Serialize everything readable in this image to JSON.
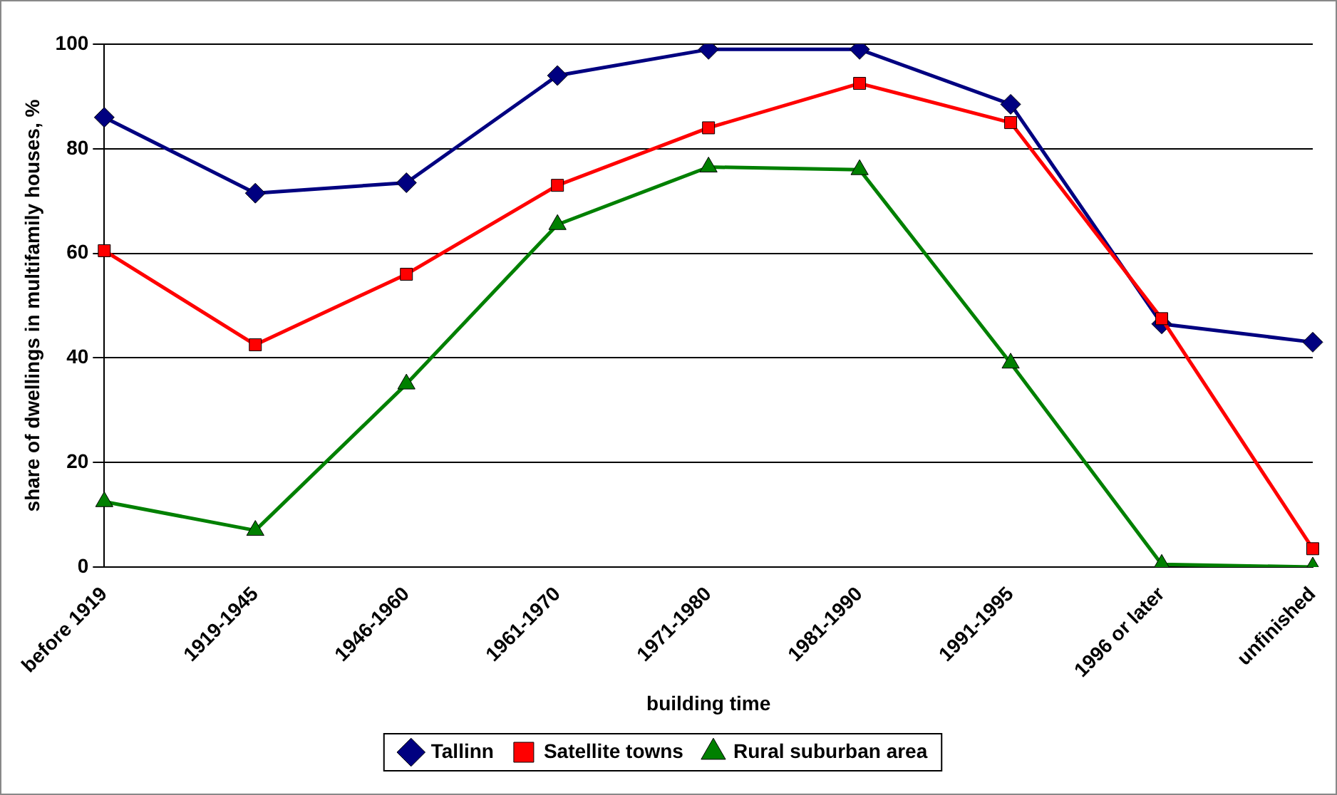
{
  "chart_data": {
    "type": "line",
    "xlabel": "building time",
    "ylabel": "share of dwellings in multifamily houses, %",
    "categories": [
      "before 1919",
      "1919-1945",
      "1946-1960",
      "1961-1970",
      "1971-1980",
      "1981-1990",
      "1991-1995",
      "1996 or later",
      "unfinished"
    ],
    "series": [
      {
        "name": "Tallinn",
        "color": "#000080",
        "marker": "diamond",
        "values": [
          86,
          71.5,
          73.5,
          94,
          99,
          99,
          88.5,
          46.5,
          43
        ]
      },
      {
        "name": "Satellite towns",
        "color": "#ff0000",
        "marker": "square",
        "values": [
          60.5,
          42.5,
          56,
          73,
          84,
          92.5,
          85,
          47.5,
          3.5
        ]
      },
      {
        "name": "Rural suburban area",
        "color": "#008000",
        "marker": "triangle",
        "values": [
          12.5,
          7,
          35,
          65.5,
          76.5,
          76,
          39,
          0.5,
          0
        ]
      }
    ],
    "ylim": [
      0,
      100
    ],
    "yticks": [
      0,
      20,
      40,
      60,
      80,
      100
    ],
    "grid": "y",
    "legend": "bottom",
    "line_style": "solid"
  }
}
